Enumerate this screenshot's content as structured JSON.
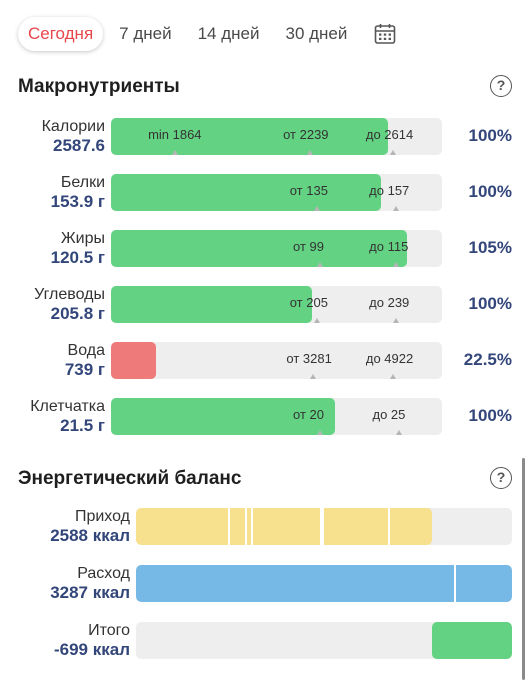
{
  "tabs": [
    {
      "label": "Сегодня",
      "active": true
    },
    {
      "label": "7 дней",
      "active": false
    },
    {
      "label": "14 дней",
      "active": false
    },
    {
      "label": "30 дней",
      "active": false
    }
  ],
  "calendar_icon": "calendar-icon",
  "macros": {
    "title": "Макронутриенты",
    "help_icon": "?",
    "rows": [
      {
        "name": "Калории",
        "value": "2587.6",
        "percent": "100%",
        "fill_fraction": 0.838,
        "color": "#63d383",
        "markers": [
          {
            "text": "min 1864",
            "at": 0.112
          },
          {
            "text": "от 2239",
            "at": 0.52
          },
          {
            "text": "до 2614",
            "at": 0.77
          }
        ]
      },
      {
        "name": "Белки",
        "value": "153.9 г",
        "percent": "100%",
        "fill_fraction": 0.815,
        "color": "#63d383",
        "markers": [
          {
            "text": "от 135",
            "at": 0.54
          },
          {
            "text": "до 157",
            "at": 0.78
          }
        ]
      },
      {
        "name": "Жиры",
        "value": "120.5 г",
        "percent": "105%",
        "fill_fraction": 0.894,
        "color": "#63d383",
        "markers": [
          {
            "text": "от 99",
            "at": 0.55
          },
          {
            "text": "до 115",
            "at": 0.78
          }
        ]
      },
      {
        "name": "Углеводы",
        "value": "205.8 г",
        "percent": "100%",
        "fill_fraction": 0.607,
        "color": "#63d383",
        "markers": [
          {
            "text": "от 205",
            "at": 0.54
          },
          {
            "text": "до 239",
            "at": 0.78
          }
        ]
      },
      {
        "name": "Вода",
        "value": "739 г",
        "percent": "22.5%",
        "fill_fraction": 0.137,
        "color": "#ee7a7a",
        "markers": [
          {
            "text": "от 3281",
            "at": 0.53
          },
          {
            "text": "до 4922",
            "at": 0.77
          }
        ]
      },
      {
        "name": "Клетчатка",
        "value": "21.5 г",
        "percent": "100%",
        "fill_fraction": 0.677,
        "color": "#63d383",
        "markers": [
          {
            "text": "от 20",
            "at": 0.55
          },
          {
            "text": "до 25",
            "at": 0.79
          }
        ]
      }
    ]
  },
  "energy": {
    "title": "Энергетический баланс",
    "help_icon": "?",
    "rows": [
      {
        "name": "Приход",
        "value": "2588 ккал",
        "color": "#f7e08e",
        "fill_from": 0.0,
        "fill_to": 0.787,
        "separators": [
          0.245,
          0.29,
          0.305,
          0.49,
          0.495,
          0.67
        ]
      },
      {
        "name": "Расход",
        "value": "3287 ккал",
        "color": "#76b8e6",
        "fill_from": 0.0,
        "fill_to": 1.0,
        "separators": [
          0.845
        ]
      },
      {
        "name": "Итого",
        "value": "-699 ккал",
        "color": "#63d383",
        "fill_from": 0.787,
        "fill_to": 1.0,
        "separators": []
      }
    ]
  }
}
